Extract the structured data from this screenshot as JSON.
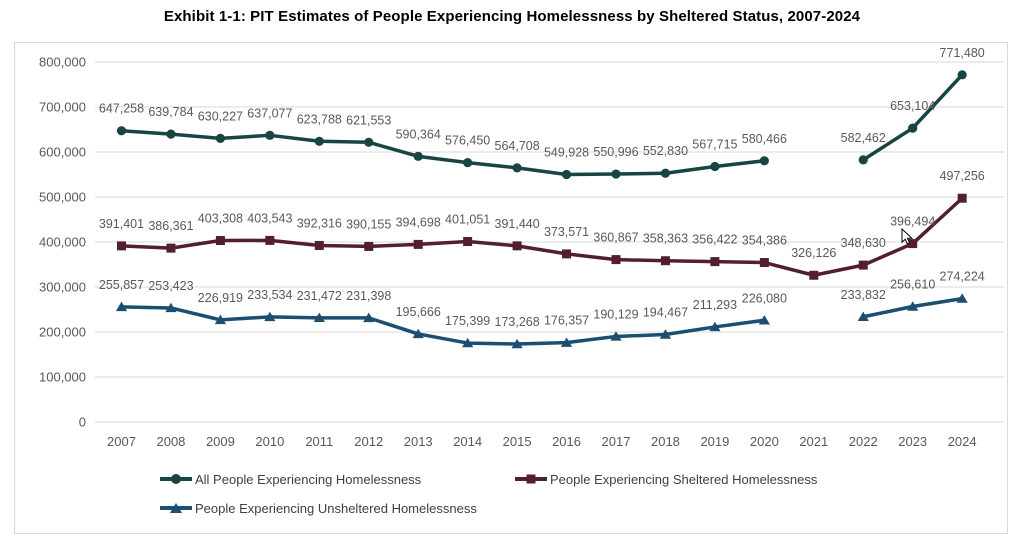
{
  "title": "Exhibit 1-1: PIT Estimates of People Experiencing Homelessness by Sheltered Status, 2007-2024",
  "colors": {
    "grid": "#d9d9d9",
    "frame_border": "#d9d9d9",
    "axis_text": "#595959",
    "data_label_text": "#595959",
    "legend_text": "#404040",
    "title_text": "#000000",
    "background": "#ffffff"
  },
  "chart_data": {
    "type": "line",
    "title": "Exhibit 1-1: PIT Estimates of People Experiencing Homelessness by Sheltered Status, 2007-2024",
    "categories": [
      "2007",
      "2008",
      "2009",
      "2010",
      "2011",
      "2012",
      "2013",
      "2014",
      "2015",
      "2016",
      "2017",
      "2018",
      "2019",
      "2020",
      "2021",
      "2022",
      "2023",
      "2024"
    ],
    "series": [
      {
        "name": "All People Experiencing Homelessness",
        "marker": "circle",
        "color": "#174542",
        "values": [
          647258,
          639784,
          630227,
          637077,
          623788,
          621553,
          590364,
          576450,
          564708,
          549928,
          550996,
          552830,
          567715,
          580466,
          null,
          582462,
          653104,
          771480
        ]
      },
      {
        "name": "People Experiencing Sheltered Homelessness",
        "marker": "square",
        "color": "#541e31",
        "values": [
          391401,
          386361,
          403308,
          403543,
          392316,
          390155,
          394698,
          401051,
          391440,
          373571,
          360867,
          358363,
          356422,
          354386,
          326126,
          348630,
          396494,
          497256
        ]
      },
      {
        "name": "People Experiencing Unsheltered Homelessness",
        "marker": "triangle",
        "color": "#1b4e70",
        "values": [
          255857,
          253423,
          226919,
          233534,
          231472,
          231398,
          195666,
          175399,
          173268,
          176357,
          190129,
          194467,
          211293,
          226080,
          null,
          233832,
          256610,
          274224
        ]
      }
    ],
    "ylim": [
      0,
      800000
    ],
    "ytick_step": 100000,
    "grid": true,
    "data_labels": true,
    "legend_position": "bottom",
    "xlabel": "",
    "ylabel": ""
  }
}
